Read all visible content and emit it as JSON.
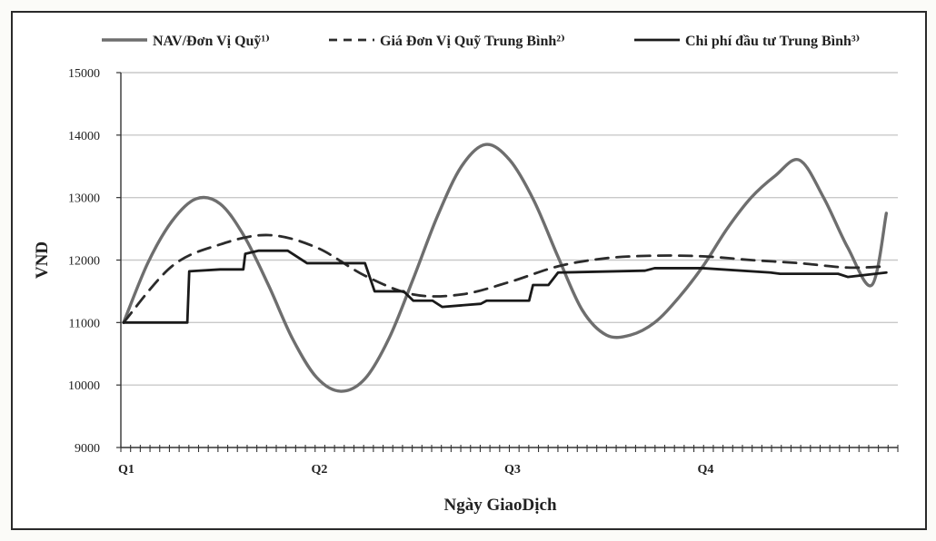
{
  "chart_data": {
    "type": "line",
    "xlabel": "Ngày GiaoDịch",
    "ylabel": "VND",
    "ylim": [
      9000,
      15000
    ],
    "yticks": [
      9000,
      10000,
      11000,
      12000,
      13000,
      14000,
      15000
    ],
    "xticks": [
      "Q1",
      "Q2",
      "Q3",
      "Q4"
    ],
    "grid": true,
    "legend_position": "top",
    "series": [
      {
        "name": "NAV/Đơn Vị Quỹ¹⁾",
        "style": "solid-gray",
        "color": "#6e6e6e",
        "x": [
          0,
          0.125,
          0.25,
          0.375,
          0.5,
          0.625,
          0.75,
          0.875,
          1,
          1.125,
          1.25,
          1.375,
          1.5,
          1.625,
          1.75,
          1.875,
          2,
          2.125,
          2.25,
          2.375,
          2.5,
          2.625,
          2.75,
          2.875,
          3,
          3.125,
          3.25,
          3.375,
          3.5,
          3.625,
          3.75,
          3.875,
          3.95
        ],
        "y": [
          11000,
          11950,
          12620,
          12980,
          12900,
          12380,
          11600,
          10740,
          10120,
          9900,
          10100,
          10750,
          11700,
          12700,
          13500,
          13850,
          13600,
          12950,
          12050,
          11200,
          10800,
          10800,
          11000,
          11400,
          11900,
          12500,
          13000,
          13350,
          13600,
          13000,
          12200,
          11600,
          12750
        ]
      },
      {
        "name": "Giá Đơn Vị Quỹ Trung Bình²⁾",
        "style": "dashed",
        "color": "#2b2b2b",
        "x": [
          0,
          0.25,
          0.5,
          0.75,
          1.0,
          1.25,
          1.5,
          1.75,
          2.0,
          2.25,
          2.5,
          2.75,
          3.0,
          3.25,
          3.5,
          3.75,
          3.95
        ],
        "y": [
          11000,
          11900,
          12250,
          12400,
          12200,
          11750,
          11450,
          11450,
          11650,
          11900,
          12030,
          12070,
          12060,
          12000,
          11950,
          11880,
          11900
        ]
      },
      {
        "name": "Chi phí đầu tư Trung Bình³⁾",
        "style": "solid-black",
        "color": "#1a1a1a",
        "x": [
          0,
          0.33,
          0.34,
          0.5,
          0.62,
          0.63,
          0.7,
          0.85,
          0.95,
          1.25,
          1.3,
          1.45,
          1.5,
          1.6,
          1.65,
          1.85,
          1.88,
          2.1,
          2.12,
          2.2,
          2.25,
          2.7,
          2.75,
          3.0,
          3.35,
          3.4,
          3.7,
          3.75,
          3.95
        ],
        "y": [
          11000,
          11000,
          11820,
          11850,
          11850,
          12100,
          12150,
          12150,
          11950,
          11950,
          11500,
          11500,
          11350,
          11350,
          11250,
          11300,
          11350,
          11350,
          11600,
          11600,
          11800,
          11830,
          11870,
          11870,
          11800,
          11780,
          11780,
          11730,
          11800
        ]
      }
    ]
  }
}
